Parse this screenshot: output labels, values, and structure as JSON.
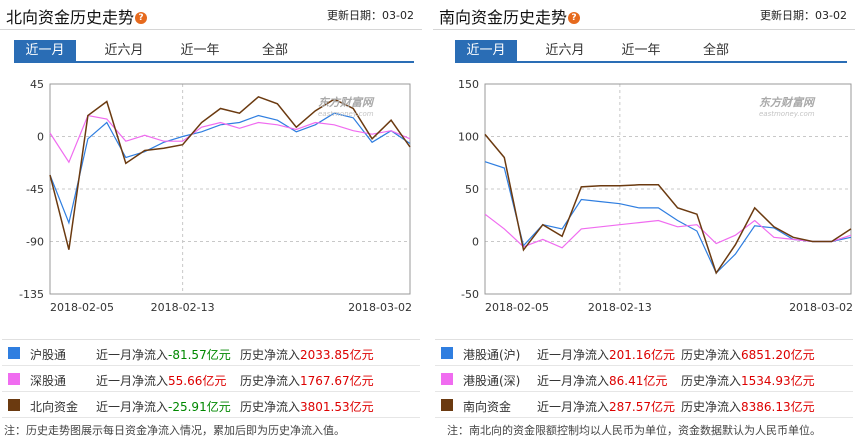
{
  "north": {
    "title": "北向资金历史走势",
    "date_label": "更新日期：",
    "date": "03-02",
    "tabs": [
      "近一月",
      "近六月",
      "近一年",
      "全部"
    ],
    "active_tab": 0,
    "watermark": {
      "brand": "东方财富网",
      "url": "eastmoney.com"
    },
    "legend": [
      {
        "name": "沪股通",
        "color": "#2f7ee0",
        "month_label": "近一月净流入",
        "month_value": "-81.57",
        "hist_label": "历史净流入",
        "hist_value": "2033.85",
        "unit": "亿元"
      },
      {
        "name": "深股通",
        "color": "#f06cf0",
        "month_label": "近一月净流入",
        "month_value": "55.66",
        "hist_label": "历史净流入",
        "hist_value": "1767.67",
        "unit": "亿元"
      },
      {
        "name": "北向资金",
        "color": "#6b3a10",
        "month_label": "近一月净流入",
        "month_value": "-25.91",
        "hist_label": "历史净流入",
        "hist_value": "3801.53",
        "unit": "亿元"
      }
    ],
    "note": "注：历史走势图展示每日资金净流入情况，累加后即为历史净流入值。"
  },
  "south": {
    "title": "南向资金历史走势",
    "date_label": "更新日期：",
    "date": "03-02",
    "tabs": [
      "近一月",
      "近六月",
      "近一年",
      "全部"
    ],
    "active_tab": 0,
    "watermark": {
      "brand": "东方财富网",
      "url": "eastmoney.com"
    },
    "legend": [
      {
        "name": "港股通(沪)",
        "color": "#2f7ee0",
        "month_label": "近一月净流入",
        "month_value": "201.16",
        "hist_label": "历史净流入",
        "hist_value": "6851.20",
        "unit": "亿元"
      },
      {
        "name": "港股通(深)",
        "color": "#f06cf0",
        "month_label": "近一月净流入",
        "month_value": "86.41",
        "hist_label": "历史净流入",
        "hist_value": "1534.93",
        "unit": "亿元"
      },
      {
        "name": "南向资金",
        "color": "#6b3a10",
        "month_label": "近一月净流入",
        "month_value": "287.57",
        "hist_label": "历史净流入",
        "hist_value": "8386.13",
        "unit": "亿元"
      }
    ],
    "note": "注：南北向的资金限额控制均以人民币为单位，资金数据默认为人民币单位。"
  },
  "chart_data": [
    {
      "type": "line",
      "yticks": [
        45,
        0,
        -45,
        -90,
        -135
      ],
      "ylim": [
        -135,
        45
      ],
      "x_labels": [
        "2018-02-05",
        "2018-02-13",
        "2018-03-02"
      ],
      "x_label_index": [
        0,
        7,
        19
      ],
      "n_points": 20,
      "grid": true,
      "series": [
        {
          "name": "沪股通",
          "color": "#2f7ee0",
          "values": [
            -33,
            -74,
            -2,
            12,
            -18,
            -13,
            -5,
            0,
            4,
            10,
            12,
            18,
            14,
            4,
            10,
            20,
            16,
            -5,
            5,
            -6
          ]
        },
        {
          "name": "深股通",
          "color": "#f06cf0",
          "values": [
            3,
            -22,
            18,
            15,
            -4,
            1,
            -4,
            -4,
            8,
            12,
            7,
            12,
            10,
            6,
            12,
            10,
            5,
            2,
            5,
            -2
          ]
        },
        {
          "name": "北向资金",
          "color": "#6b3a10",
          "values": [
            -33,
            -97,
            18,
            30,
            -23,
            -12,
            -10,
            -7,
            12,
            24,
            20,
            34,
            28,
            8,
            22,
            32,
            24,
            -2,
            14,
            -9
          ]
        }
      ]
    },
    {
      "type": "line",
      "yticks": [
        150,
        100,
        50,
        0,
        -50
      ],
      "ylim": [
        -50,
        150
      ],
      "x_labels": [
        "2018-02-05",
        "2018-02-13",
        "2018-03-02"
      ],
      "x_label_index": [
        0,
        7,
        19
      ],
      "n_points": 20,
      "grid": true,
      "series": [
        {
          "name": "港股通(沪)",
          "color": "#2f7ee0",
          "values": [
            76,
            70,
            -4,
            16,
            12,
            40,
            38,
            36,
            32,
            32,
            20,
            10,
            -30,
            -12,
            15,
            13,
            2,
            0,
            0,
            4
          ]
        },
        {
          "name": "港股通(深)",
          "color": "#f06cf0",
          "values": [
            26,
            12,
            -5,
            2,
            -6,
            12,
            14,
            16,
            18,
            20,
            14,
            16,
            -2,
            6,
            20,
            4,
            2,
            0,
            0,
            6
          ]
        },
        {
          "name": "南向资金",
          "color": "#6b3a10",
          "values": [
            102,
            80,
            -8,
            16,
            5,
            52,
            53,
            53,
            54,
            54,
            32,
            26,
            -30,
            -3,
            32,
            14,
            4,
            0,
            0,
            12
          ]
        }
      ]
    }
  ]
}
